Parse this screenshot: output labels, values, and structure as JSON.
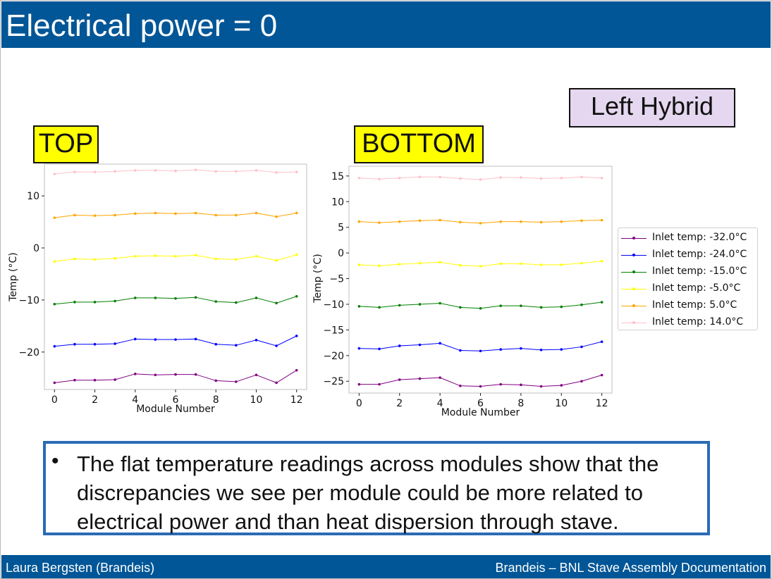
{
  "slide": {
    "title": "Electrical power = 0",
    "labels": {
      "top": "TOP",
      "bottom": "BOTTOM",
      "hybrid": "Left Hybrid"
    },
    "bullet": "The flat temperature readings across modules show that the discrepancies we see per module could be more related to electrical power and than heat dispersion through stave.",
    "footer_left": "Laura Bergsten (Brandeis)",
    "footer_right": "Brandeis – BNL Stave Assembly Documentation"
  },
  "legend": {
    "items": [
      {
        "label": "Inlet temp: -32.0°C",
        "color": "#800080"
      },
      {
        "label": "Inlet temp: -24.0°C",
        "color": "#0000ff"
      },
      {
        "label": "Inlet temp: -15.0°C",
        "color": "#008000"
      },
      {
        "label": "Inlet temp: -5.0°C",
        "color": "#ffff00"
      },
      {
        "label": "Inlet temp: 5.0°C",
        "color": "#ffa500"
      },
      {
        "label": "Inlet temp: 14.0°C",
        "color": "#ffc0cb"
      }
    ]
  },
  "chart_data": [
    {
      "type": "line",
      "panel": "TOP",
      "xlabel": "Module Number",
      "ylabel": "Temp (°C)",
      "xlim": [
        -0.5,
        12.5
      ],
      "ylim": [
        -27.2,
        16.1
      ],
      "xticks": [
        0,
        2,
        4,
        6,
        8,
        10,
        12
      ],
      "yticks": [
        -20,
        -10,
        0,
        10
      ],
      "x": [
        0,
        1,
        2,
        3,
        4,
        5,
        6,
        7,
        8,
        9,
        10,
        11,
        12
      ],
      "series": [
        {
          "name": "Inlet temp: -32.0°C",
          "color": "#800080",
          "values": [
            -25.9,
            -25.4,
            -25.4,
            -25.3,
            -24.2,
            -24.4,
            -24.3,
            -24.3,
            -25.5,
            -25.7,
            -24.4,
            -25.9,
            -23.5
          ]
        },
        {
          "name": "Inlet temp: -24.0°C",
          "color": "#0000ff",
          "values": [
            -18.9,
            -18.5,
            -18.5,
            -18.4,
            -17.5,
            -17.6,
            -17.6,
            -17.5,
            -18.5,
            -18.7,
            -17.7,
            -18.8,
            -16.9
          ]
        },
        {
          "name": "Inlet temp: -15.0°C",
          "color": "#008000",
          "values": [
            -10.8,
            -10.4,
            -10.4,
            -10.2,
            -9.6,
            -9.6,
            -9.7,
            -9.5,
            -10.3,
            -10.5,
            -9.6,
            -10.6,
            -9.3
          ]
        },
        {
          "name": "Inlet temp: -5.0°C",
          "color": "#ffff00",
          "values": [
            -2.6,
            -2.1,
            -2.2,
            -2.0,
            -1.6,
            -1.5,
            -1.6,
            -1.4,
            -2.1,
            -2.2,
            -1.6,
            -2.4,
            -1.3
          ]
        },
        {
          "name": "Inlet temp: 5.0°C",
          "color": "#ffa500",
          "values": [
            5.8,
            6.3,
            6.2,
            6.3,
            6.6,
            6.7,
            6.6,
            6.7,
            6.3,
            6.3,
            6.7,
            6.0,
            6.7
          ]
        },
        {
          "name": "Inlet temp: 14.0°C",
          "color": "#ffc0cb",
          "values": [
            14.2,
            14.6,
            14.6,
            14.7,
            14.9,
            14.9,
            14.8,
            15.0,
            14.7,
            14.7,
            14.9,
            14.5,
            14.6
          ]
        }
      ]
    },
    {
      "type": "line",
      "panel": "BOTTOM",
      "xlabel": "Module Number",
      "ylabel": "Temp (°C)",
      "xlim": [
        -0.5,
        12.5
      ],
      "ylim": [
        -27.3,
        16.9
      ],
      "xticks": [
        0,
        2,
        4,
        6,
        8,
        10,
        12
      ],
      "yticks": [
        -25,
        -20,
        -15,
        -10,
        -5,
        0,
        5,
        10,
        15
      ],
      "x": [
        0,
        1,
        2,
        3,
        4,
        5,
        6,
        7,
        8,
        9,
        10,
        11,
        12
      ],
      "series": [
        {
          "name": "Inlet temp: -32.0°C",
          "color": "#800080",
          "values": [
            -25.6,
            -25.6,
            -24.7,
            -24.5,
            -24.3,
            -25.9,
            -26.0,
            -25.6,
            -25.7,
            -26.0,
            -25.8,
            -25.0,
            -23.8
          ]
        },
        {
          "name": "Inlet temp: -24.0°C",
          "color": "#0000ff",
          "values": [
            -18.6,
            -18.7,
            -18.1,
            -17.9,
            -17.6,
            -19.0,
            -19.1,
            -18.8,
            -18.6,
            -18.9,
            -18.8,
            -18.3,
            -17.3
          ]
        },
        {
          "name": "Inlet temp: -15.0°C",
          "color": "#008000",
          "values": [
            -10.4,
            -10.6,
            -10.2,
            -10.0,
            -9.8,
            -10.6,
            -10.8,
            -10.3,
            -10.3,
            -10.6,
            -10.5,
            -10.1,
            -9.6
          ]
        },
        {
          "name": "Inlet temp: -5.0°C",
          "color": "#ffff00",
          "values": [
            -2.3,
            -2.5,
            -2.2,
            -2.0,
            -1.8,
            -2.4,
            -2.6,
            -2.1,
            -2.1,
            -2.3,
            -2.3,
            -2.0,
            -1.6
          ]
        },
        {
          "name": "Inlet temp: 5.0°C",
          "color": "#ffa500",
          "values": [
            6.1,
            5.9,
            6.1,
            6.3,
            6.4,
            6.0,
            5.8,
            6.1,
            6.1,
            6.0,
            6.1,
            6.3,
            6.4
          ]
        },
        {
          "name": "Inlet temp: 14.0°C",
          "color": "#ffc0cb",
          "values": [
            14.6,
            14.4,
            14.6,
            14.8,
            14.8,
            14.5,
            14.3,
            14.7,
            14.7,
            14.5,
            14.6,
            14.8,
            14.6
          ]
        }
      ]
    }
  ]
}
